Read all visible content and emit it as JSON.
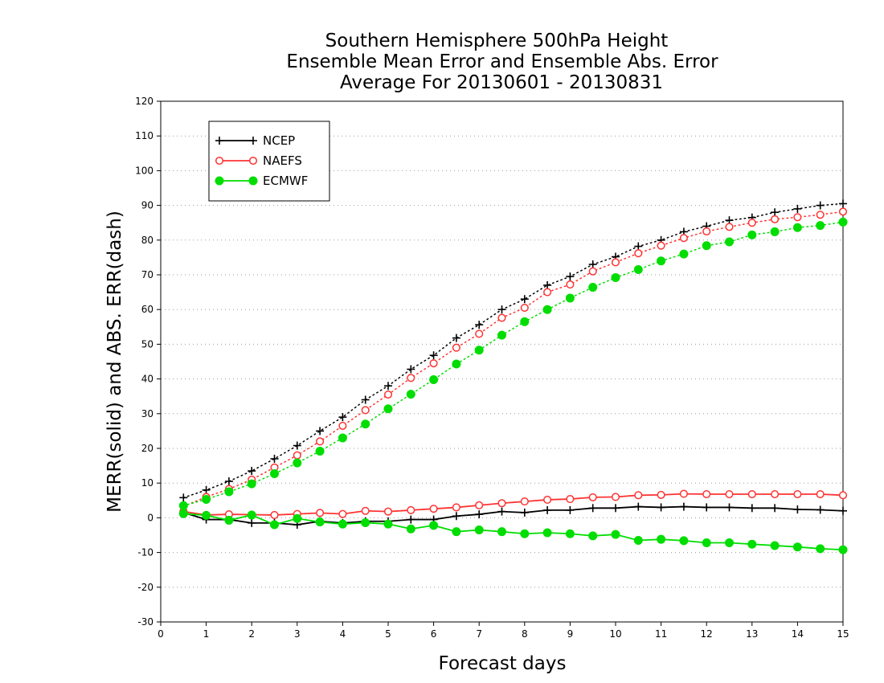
{
  "chart_data": {
    "type": "line",
    "title": [
      "Southern Hemisphere 500hPa Height",
      "Ensemble Mean Error and Ensemble Abs. Error",
      "Average For 20130601 - 20130831"
    ],
    "xlabel": "Forecast days",
    "ylabel": "MERR(solid) and ABS. ERR(dash)",
    "xlim": [
      0,
      15
    ],
    "ylim": [
      -30,
      120
    ],
    "x_ticks": [
      0,
      1,
      2,
      3,
      4,
      5,
      6,
      7,
      8,
      9,
      10,
      11,
      12,
      13,
      14,
      15
    ],
    "y_ticks": [
      -30,
      -20,
      -10,
      0,
      10,
      20,
      30,
      40,
      50,
      60,
      70,
      80,
      90,
      100,
      110,
      120
    ],
    "grid": "horizontal dotted",
    "legend_position": "top-left",
    "x": [
      0.5,
      1,
      1.5,
      2,
      2.5,
      3,
      3.5,
      4,
      4.5,
      5,
      5.5,
      6,
      6.5,
      7,
      7.5,
      8,
      8.5,
      9,
      9.5,
      10,
      10.5,
      11,
      11.5,
      12,
      12.5,
      13,
      13.5,
      14,
      14.5,
      15
    ],
    "series": [
      {
        "name": "NCEP",
        "color": "#000000",
        "marker": "plus",
        "merr": [
          1.5,
          -0.5,
          -0.5,
          -1.5,
          -1.5,
          -2,
          -1,
          -1.5,
          -1,
          -1,
          -0.5,
          -0.5,
          0.5,
          1,
          1.8,
          1.5,
          2.2,
          2.2,
          2.8,
          2.8,
          3.2,
          3.0,
          3.2,
          3.0,
          3.0,
          2.8,
          2.8,
          2.4,
          2.3,
          2.0
        ],
        "abs_err": [
          5.8,
          8,
          10.5,
          13.5,
          17,
          20.8,
          25,
          29,
          34,
          38,
          42.8,
          46.8,
          51.8,
          55.6,
          60,
          63,
          67,
          69.5,
          73,
          75.2,
          78.2,
          80,
          82.4,
          84,
          85.7,
          86.5,
          88,
          89,
          90,
          90.5
        ]
      },
      {
        "name": "NAEFS",
        "color": "#ff3333",
        "marker": "open-circle",
        "merr": [
          1.8,
          0.8,
          1.0,
          0.9,
          0.8,
          1.1,
          1.4,
          1.1,
          2,
          1.8,
          2.2,
          2.6,
          3,
          3.6,
          4.2,
          4.7,
          5.2,
          5.4,
          5.9,
          6.0,
          6.5,
          6.6,
          6.9,
          6.8,
          6.8,
          6.8,
          6.8,
          6.8,
          6.8,
          6.5
        ],
        "abs_err": [
          3.3,
          6,
          8.3,
          11,
          14.5,
          18,
          22,
          26.5,
          31,
          35.5,
          40.3,
          44.5,
          49,
          53,
          57.6,
          60.5,
          65,
          67.2,
          71,
          73.6,
          76.2,
          78.4,
          80.6,
          82.5,
          83.8,
          85,
          86,
          86.6,
          87.3,
          88.2
        ]
      },
      {
        "name": "ECMWF",
        "color": "#00dd00",
        "marker": "filled-circle",
        "merr": [
          1.2,
          0.7,
          -0.7,
          0.8,
          -2,
          -0.2,
          -1.2,
          -1.8,
          -1.4,
          -1.8,
          -3.2,
          -2.2,
          -4,
          -3.5,
          -4,
          -4.6,
          -4.3,
          -4.6,
          -5.2,
          -4.8,
          -6.5,
          -6.2,
          -6.6,
          -7.2,
          -7.2,
          -7.6,
          -8.0,
          -8.4,
          -8.9,
          -9.2
        ],
        "abs_err": [
          3.5,
          5.3,
          7.5,
          9.8,
          12.7,
          15.8,
          19.2,
          23,
          27,
          31.4,
          35.6,
          39.8,
          44.3,
          48.3,
          52.6,
          56.5,
          60,
          63.3,
          66.4,
          69.2,
          71.5,
          74,
          76,
          78.4,
          79.5,
          81.5,
          82.4,
          83.6,
          84.2,
          85.2
        ]
      }
    ]
  }
}
